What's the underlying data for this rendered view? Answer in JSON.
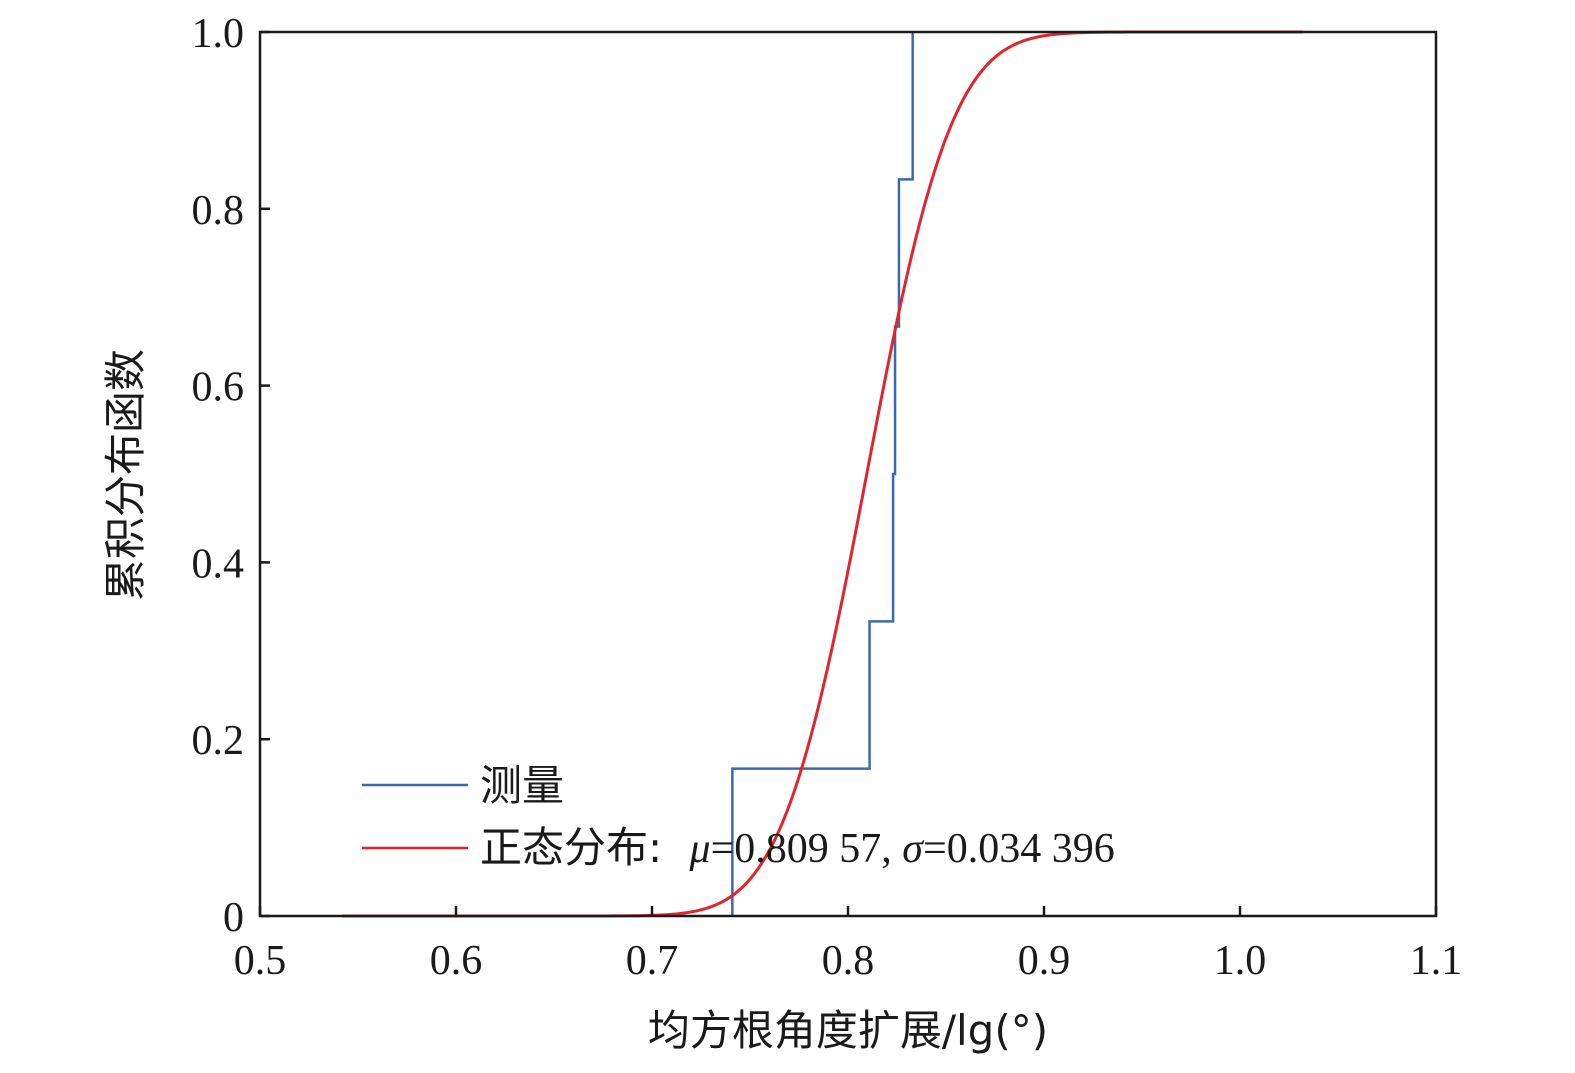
{
  "chart_data": {
    "type": "line",
    "xlabel": "均方根角度扩展/lg(°)",
    "ylabel": "累积分布函数",
    "xlim": [
      0.5,
      1.1
    ],
    "ylim": [
      0,
      1.0
    ],
    "x_ticks": [
      {
        "value": 0.5,
        "label": "0.5"
      },
      {
        "value": 0.6,
        "label": "0.6"
      },
      {
        "value": 0.7,
        "label": "0.7"
      },
      {
        "value": 0.8,
        "label": "0.8"
      },
      {
        "value": 0.9,
        "label": "0.9"
      },
      {
        "value": 1.0,
        "label": "1.0"
      },
      {
        "value": 1.1,
        "label": "1.1"
      }
    ],
    "y_ticks": [
      {
        "value": 0,
        "label": "0"
      },
      {
        "value": 0.2,
        "label": "0.2"
      },
      {
        "value": 0.4,
        "label": "0.4"
      },
      {
        "value": 0.6,
        "label": "0.6"
      },
      {
        "value": 0.8,
        "label": "0.8"
      },
      {
        "value": 1.0,
        "label": "1.0"
      }
    ],
    "grid": false,
    "legend_position": "bottom-left",
    "series": [
      {
        "name": "测量",
        "kind": "step",
        "color": "#3a6aad",
        "x": [
          0.741,
          0.741,
          0.811,
          0.811,
          0.823,
          0.823,
          0.824,
          0.824,
          0.826,
          0.826,
          0.833,
          0.833
        ],
        "y": [
          0.0,
          0.1667,
          0.1667,
          0.3333,
          0.3333,
          0.5,
          0.5,
          0.6667,
          0.6667,
          0.8333,
          0.8333,
          1.0
        ]
      },
      {
        "name_prefix": "正态分布: ",
        "mu_symbol": "μ",
        "mu_value": "=0.809 57, ",
        "sigma_symbol": "σ",
        "sigma_value": "=0.034 396",
        "kind": "normal-cdf",
        "color": "#e0262d",
        "mu": 0.80957,
        "sigma": 0.034396,
        "x_range": [
          0.542,
          1.032
        ]
      }
    ]
  }
}
